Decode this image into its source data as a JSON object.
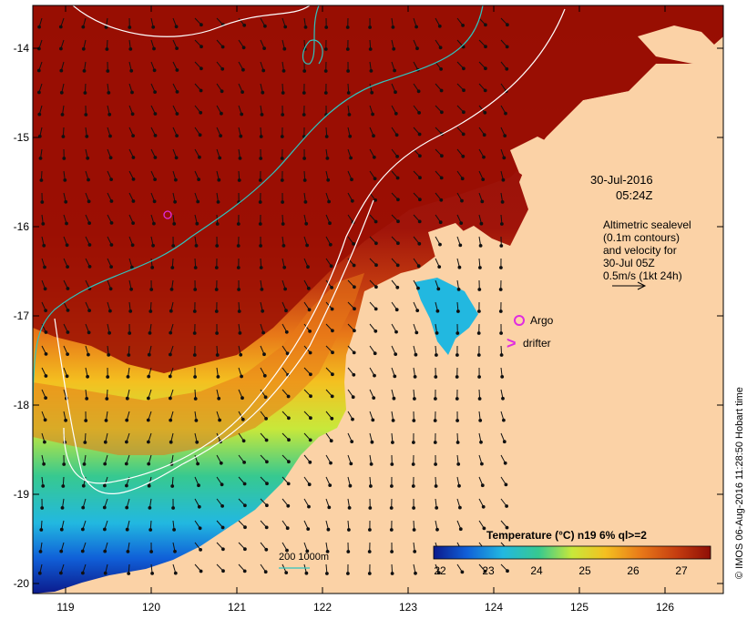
{
  "map": {
    "date": "30-Jul-2016",
    "time": "05:24Z",
    "info_lines": [
      "Altimetric sealevel",
      "(0.1m contours)",
      "and velocity for",
      "30-Jul 05Z",
      "0.5m/s (1kt 24h)"
    ],
    "legend": {
      "argo_label": "Argo",
      "drifter_label": "drifter",
      "drifter_symbol": ">",
      "bathy_label": "200  1000m"
    },
    "colorbar": {
      "title": "Temperature (°C) n19 6% ql>=2",
      "ticks": [
        "22",
        "23",
        "24",
        "25",
        "26",
        "27"
      ],
      "colors": [
        "#0b1a8c",
        "#1060d8",
        "#22b8e0",
        "#37c98f",
        "#c8e83a",
        "#f4c020",
        "#e87818",
        "#c43c10",
        "#8e0e06"
      ]
    },
    "x_ticks": [
      "119",
      "120",
      "121",
      "122",
      "123",
      "124",
      "125",
      "126"
    ],
    "y_ticks": [
      "-14",
      "-15",
      "-16",
      "-17",
      "-18",
      "-19",
      "-20"
    ],
    "credit": "© IMOS 06-Aug-2016 11:28:50 Hobart time",
    "colors": {
      "land": "#fbd2a6",
      "warm_sea": "#9a0e02",
      "argo": "#e02ce0",
      "bathy_200": "#2fc4bf",
      "contour": "#ffffff"
    }
  }
}
